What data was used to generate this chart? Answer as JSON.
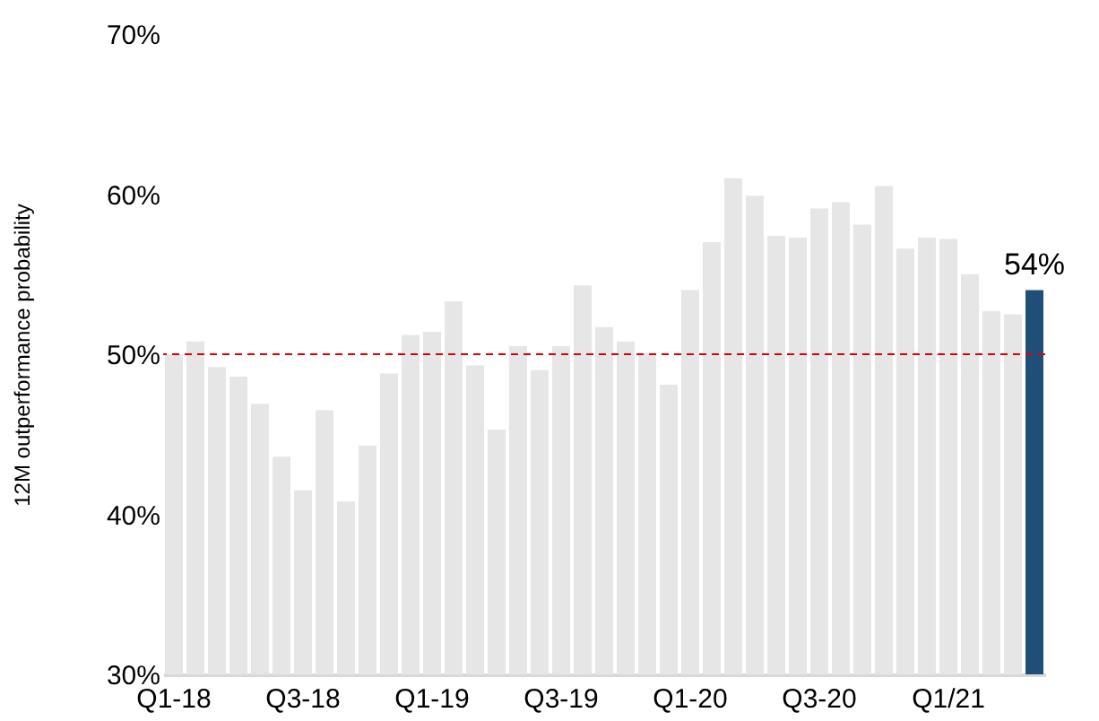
{
  "chart_data": {
    "type": "bar",
    "ylabel": "12M outperformance probability",
    "categories": [
      "Q1-18",
      null,
      null,
      null,
      null,
      null,
      "Q3-18",
      null,
      null,
      null,
      null,
      null,
      "Q1-19",
      null,
      null,
      null,
      null,
      null,
      "Q3-19",
      null,
      null,
      null,
      null,
      null,
      "Q1-20",
      null,
      null,
      null,
      null,
      null,
      "Q3-20",
      null,
      null,
      null,
      null,
      null,
      "Q1/21",
      null,
      null,
      null,
      null
    ],
    "values": [
      50.0,
      50.8,
      49.2,
      48.6,
      46.9,
      43.6,
      41.5,
      46.5,
      40.8,
      44.3,
      48.8,
      51.2,
      51.4,
      53.3,
      49.3,
      45.3,
      50.5,
      49.0,
      50.5,
      54.3,
      51.7,
      50.8,
      50.1,
      48.1,
      54.0,
      57.0,
      61.0,
      59.9,
      57.4,
      57.3,
      59.1,
      59.5,
      58.1,
      60.5,
      56.6,
      57.3,
      57.2,
      55.0,
      52.7,
      52.5,
      54
    ],
    "colors": [
      "#e6e6e6",
      "#e6e6e6",
      "#e6e6e6",
      "#e6e6e6",
      "#e6e6e6",
      "#e6e6e6",
      "#e6e6e6",
      "#e6e6e6",
      "#e6e6e6",
      "#e6e6e6",
      "#e6e6e6",
      "#e6e6e6",
      "#e6e6e6",
      "#e6e6e6",
      "#e6e6e6",
      "#e6e6e6",
      "#e6e6e6",
      "#e6e6e6",
      "#e6e6e6",
      "#e6e6e6",
      "#e6e6e6",
      "#e6e6e6",
      "#e6e6e6",
      "#e6e6e6",
      "#e6e6e6",
      "#e6e6e6",
      "#e6e6e6",
      "#e6e6e6",
      "#e6e6e6",
      "#e6e6e6",
      "#e6e6e6",
      "#e6e6e6",
      "#e6e6e6",
      "#e6e6e6",
      "#e6e6e6",
      "#e6e6e6",
      "#e6e6e6",
      "#e6e6e6",
      "#e6e6e6",
      "#e6e6e6",
      "#1f4e79"
    ],
    "value_labels": [
      null,
      null,
      null,
      null,
      null,
      null,
      null,
      null,
      null,
      null,
      null,
      null,
      null,
      null,
      null,
      null,
      null,
      null,
      null,
      null,
      null,
      null,
      null,
      null,
      null,
      null,
      null,
      null,
      null,
      null,
      null,
      null,
      null,
      null,
      null,
      null,
      null,
      null,
      null,
      null,
      "54%"
    ],
    "ylim": [
      30,
      70
    ],
    "yticks": [
      {
        "value": 30,
        "label": "30%"
      },
      {
        "value": 40,
        "label": "40%"
      },
      {
        "value": 50,
        "label": "50%"
      },
      {
        "value": 60,
        "label": "60%"
      },
      {
        "value": 70,
        "label": "70%"
      }
    ],
    "ref_lines": [
      {
        "axis": "y",
        "value": 50,
        "color": "#e00000",
        "line_style": "dashed"
      }
    ],
    "grid": false
  }
}
